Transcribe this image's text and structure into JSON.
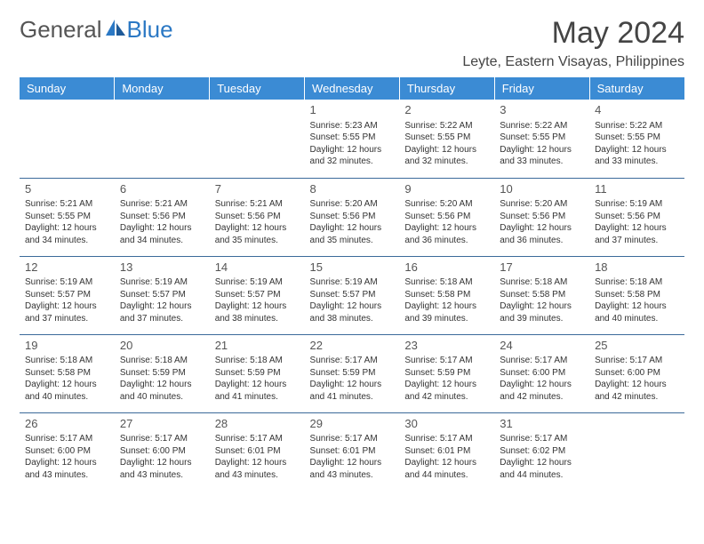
{
  "header": {
    "logo_part1": "General",
    "logo_part2": "Blue",
    "month_title": "May 2024",
    "location": "Leyte, Eastern Visayas, Philippines"
  },
  "colors": {
    "header_bg": "#3b8bd4",
    "header_text": "#ffffff",
    "row_divider": "#3b6a9a",
    "logo_gray": "#555555",
    "logo_blue": "#2b78c4",
    "body_text": "#333333",
    "background": "#ffffff"
  },
  "typography": {
    "month_title_fontsize": 34,
    "location_fontsize": 16,
    "logo_fontsize": 26,
    "weekday_fontsize": 13,
    "daynum_fontsize": 13,
    "cell_fontsize": 10
  },
  "calendar": {
    "type": "table",
    "weekdays": [
      "Sunday",
      "Monday",
      "Tuesday",
      "Wednesday",
      "Thursday",
      "Friday",
      "Saturday"
    ],
    "weeks": [
      [
        null,
        null,
        null,
        {
          "day": "1",
          "sunrise": "5:23 AM",
          "sunset": "5:55 PM",
          "daylight": "12 hours and 32 minutes."
        },
        {
          "day": "2",
          "sunrise": "5:22 AM",
          "sunset": "5:55 PM",
          "daylight": "12 hours and 32 minutes."
        },
        {
          "day": "3",
          "sunrise": "5:22 AM",
          "sunset": "5:55 PM",
          "daylight": "12 hours and 33 minutes."
        },
        {
          "day": "4",
          "sunrise": "5:22 AM",
          "sunset": "5:55 PM",
          "daylight": "12 hours and 33 minutes."
        }
      ],
      [
        {
          "day": "5",
          "sunrise": "5:21 AM",
          "sunset": "5:55 PM",
          "daylight": "12 hours and 34 minutes."
        },
        {
          "day": "6",
          "sunrise": "5:21 AM",
          "sunset": "5:56 PM",
          "daylight": "12 hours and 34 minutes."
        },
        {
          "day": "7",
          "sunrise": "5:21 AM",
          "sunset": "5:56 PM",
          "daylight": "12 hours and 35 minutes."
        },
        {
          "day": "8",
          "sunrise": "5:20 AM",
          "sunset": "5:56 PM",
          "daylight": "12 hours and 35 minutes."
        },
        {
          "day": "9",
          "sunrise": "5:20 AM",
          "sunset": "5:56 PM",
          "daylight": "12 hours and 36 minutes."
        },
        {
          "day": "10",
          "sunrise": "5:20 AM",
          "sunset": "5:56 PM",
          "daylight": "12 hours and 36 minutes."
        },
        {
          "day": "11",
          "sunrise": "5:19 AM",
          "sunset": "5:56 PM",
          "daylight": "12 hours and 37 minutes."
        }
      ],
      [
        {
          "day": "12",
          "sunrise": "5:19 AM",
          "sunset": "5:57 PM",
          "daylight": "12 hours and 37 minutes."
        },
        {
          "day": "13",
          "sunrise": "5:19 AM",
          "sunset": "5:57 PM",
          "daylight": "12 hours and 37 minutes."
        },
        {
          "day": "14",
          "sunrise": "5:19 AM",
          "sunset": "5:57 PM",
          "daylight": "12 hours and 38 minutes."
        },
        {
          "day": "15",
          "sunrise": "5:19 AM",
          "sunset": "5:57 PM",
          "daylight": "12 hours and 38 minutes."
        },
        {
          "day": "16",
          "sunrise": "5:18 AM",
          "sunset": "5:58 PM",
          "daylight": "12 hours and 39 minutes."
        },
        {
          "day": "17",
          "sunrise": "5:18 AM",
          "sunset": "5:58 PM",
          "daylight": "12 hours and 39 minutes."
        },
        {
          "day": "18",
          "sunrise": "5:18 AM",
          "sunset": "5:58 PM",
          "daylight": "12 hours and 40 minutes."
        }
      ],
      [
        {
          "day": "19",
          "sunrise": "5:18 AM",
          "sunset": "5:58 PM",
          "daylight": "12 hours and 40 minutes."
        },
        {
          "day": "20",
          "sunrise": "5:18 AM",
          "sunset": "5:59 PM",
          "daylight": "12 hours and 40 minutes."
        },
        {
          "day": "21",
          "sunrise": "5:18 AM",
          "sunset": "5:59 PM",
          "daylight": "12 hours and 41 minutes."
        },
        {
          "day": "22",
          "sunrise": "5:17 AM",
          "sunset": "5:59 PM",
          "daylight": "12 hours and 41 minutes."
        },
        {
          "day": "23",
          "sunrise": "5:17 AM",
          "sunset": "5:59 PM",
          "daylight": "12 hours and 42 minutes."
        },
        {
          "day": "24",
          "sunrise": "5:17 AM",
          "sunset": "6:00 PM",
          "daylight": "12 hours and 42 minutes."
        },
        {
          "day": "25",
          "sunrise": "5:17 AM",
          "sunset": "6:00 PM",
          "daylight": "12 hours and 42 minutes."
        }
      ],
      [
        {
          "day": "26",
          "sunrise": "5:17 AM",
          "sunset": "6:00 PM",
          "daylight": "12 hours and 43 minutes."
        },
        {
          "day": "27",
          "sunrise": "5:17 AM",
          "sunset": "6:00 PM",
          "daylight": "12 hours and 43 minutes."
        },
        {
          "day": "28",
          "sunrise": "5:17 AM",
          "sunset": "6:01 PM",
          "daylight": "12 hours and 43 minutes."
        },
        {
          "day": "29",
          "sunrise": "5:17 AM",
          "sunset": "6:01 PM",
          "daylight": "12 hours and 43 minutes."
        },
        {
          "day": "30",
          "sunrise": "5:17 AM",
          "sunset": "6:01 PM",
          "daylight": "12 hours and 44 minutes."
        },
        {
          "day": "31",
          "sunrise": "5:17 AM",
          "sunset": "6:02 PM",
          "daylight": "12 hours and 44 minutes."
        },
        null
      ]
    ],
    "labels": {
      "sunrise_prefix": "Sunrise: ",
      "sunset_prefix": "Sunset: ",
      "daylight_prefix": "Daylight: "
    }
  }
}
